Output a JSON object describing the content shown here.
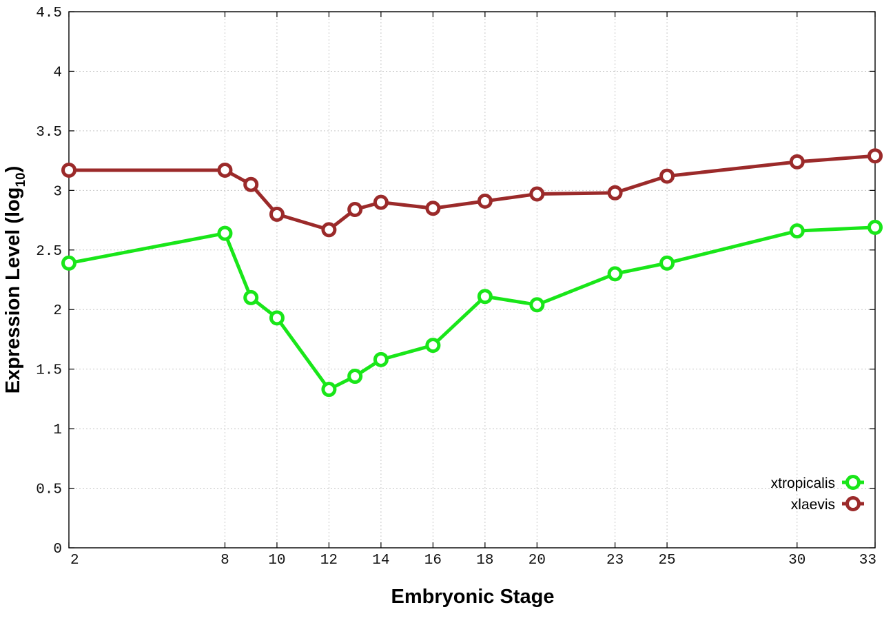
{
  "chart_data": {
    "type": "line",
    "x": [
      2,
      8,
      9,
      10,
      12,
      13,
      14,
      16,
      18,
      20,
      23,
      25,
      30,
      33
    ],
    "x_tick_labels": [
      "2",
      "8",
      "10",
      "12",
      "14",
      "16",
      "18",
      "20",
      "23",
      "25",
      "30",
      "33"
    ],
    "y_tick_labels": [
      "0",
      "0.5",
      "1",
      "1.5",
      "2",
      "2.5",
      "3",
      "3.5",
      "4",
      "4.5"
    ],
    "ylim": [
      0,
      4.5
    ],
    "xlim": [
      2,
      33
    ],
    "xlabel": "Embryonic Stage",
    "ylabel": "Expression Level (log",
    "ylabel_sub": "10",
    "ylabel_end": ")",
    "grid": true,
    "legend_position": "bottom-right",
    "series": [
      {
        "name": "xtropicalis",
        "color": "#19e619",
        "values": [
          2.39,
          2.64,
          2.1,
          1.93,
          1.33,
          1.44,
          1.58,
          1.7,
          2.11,
          2.04,
          2.3,
          2.39,
          2.66,
          2.69
        ]
      },
      {
        "name": "xlaevis",
        "color": "#9b2a2a",
        "values": [
          3.17,
          3.17,
          3.05,
          2.8,
          2.67,
          2.84,
          2.9,
          2.85,
          2.91,
          2.97,
          2.98,
          3.12,
          3.24,
          3.29
        ]
      }
    ]
  }
}
